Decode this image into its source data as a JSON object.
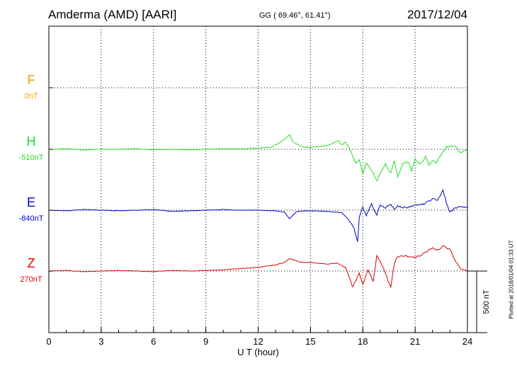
{
  "header": {
    "station": "Amderma (AMD)  [AARI]",
    "coords": "GG ( 69.46°,  61.41°)",
    "date": "2017/12/04"
  },
  "footer": {
    "plotted": "Plotted at 2018/01/04 01:33 UT"
  },
  "chart_data": {
    "type": "line",
    "xlabel": "U T (hour)",
    "xlim": [
      0,
      24
    ],
    "xticks": [
      "0",
      "3",
      "6",
      "9",
      "12",
      "15",
      "18",
      "21",
      "24"
    ],
    "scale_bar_label": "500 nT",
    "grid": true,
    "series": [
      {
        "name": "F",
        "baseline": "0nT",
        "color": "#f5a000",
        "values": []
      },
      {
        "name": "H",
        "baseline": "-510nT",
        "color": "#22dd22",
        "x": [
          0,
          1,
          2,
          3,
          4,
          5,
          6,
          7,
          8,
          9,
          10,
          11,
          12,
          12.8,
          13.3,
          13.6,
          13.8,
          14.0,
          14.5,
          15.0,
          15.5,
          16.0,
          16.3,
          16.6,
          16.8,
          17.0,
          17.2,
          17.4,
          17.6,
          17.8,
          18.0,
          18.2,
          18.5,
          18.8,
          19.0,
          19.3,
          19.6,
          19.8,
          20.0,
          20.3,
          20.6,
          20.8,
          21.0,
          21.3,
          21.6,
          21.8,
          22.0,
          22.2,
          22.5,
          22.8,
          23.0,
          23.3,
          23.6,
          24
        ],
        "values": [
          0,
          5,
          -5,
          0,
          0,
          5,
          -5,
          0,
          -5,
          0,
          5,
          5,
          10,
          20,
          60,
          90,
          120,
          60,
          20,
          15,
          25,
          30,
          50,
          70,
          35,
          60,
          20,
          -50,
          -120,
          -80,
          -200,
          -110,
          -170,
          -260,
          -200,
          -120,
          -190,
          -90,
          -230,
          -110,
          -100,
          -170,
          -80,
          -120,
          -60,
          -130,
          -90,
          -110,
          -40,
          20,
          20,
          30,
          -30,
          0
        ]
      },
      {
        "name": "E",
        "baseline": "-840nT",
        "color": "#0000cc",
        "x": [
          0,
          1,
          2,
          3,
          4,
          5,
          6,
          7,
          8,
          9,
          10,
          11,
          12,
          13.0,
          13.5,
          13.8,
          14.2,
          15.0,
          16.0,
          16.8,
          17.2,
          17.5,
          17.7,
          17.8,
          18.0,
          18.2,
          18.5,
          18.8,
          19.0,
          19.3,
          19.6,
          19.8,
          20.0,
          20.5,
          21.0,
          21.5,
          22.0,
          22.3,
          22.6,
          22.8,
          23.0,
          23.3,
          23.6,
          24
        ],
        "values": [
          0,
          -5,
          5,
          0,
          -5,
          0,
          5,
          -10,
          -5,
          0,
          5,
          0,
          0,
          -5,
          -15,
          -70,
          -10,
          -5,
          -10,
          -20,
          -80,
          -150,
          -260,
          -50,
          20,
          -40,
          50,
          -40,
          40,
          20,
          50,
          10,
          30,
          20,
          40,
          50,
          90,
          80,
          160,
          60,
          -20,
          20,
          30,
          20
        ]
      },
      {
        "name": "Z",
        "baseline": "270nT",
        "color": "#dd0000",
        "x": [
          0,
          1,
          2,
          3,
          4,
          5,
          6,
          7,
          8,
          9,
          10,
          11,
          12,
          13.0,
          13.5,
          13.8,
          14.5,
          15.0,
          16.0,
          16.5,
          17.0,
          17.2,
          17.4,
          17.6,
          17.8,
          18.0,
          18.3,
          18.6,
          18.8,
          19.0,
          19.3,
          19.6,
          19.8,
          20.0,
          20.5,
          21.0,
          21.5,
          22.0,
          22.3,
          22.6,
          23.0,
          23.3,
          23.6,
          24
        ],
        "values": [
          0,
          5,
          -5,
          0,
          5,
          0,
          -5,
          5,
          0,
          5,
          10,
          20,
          30,
          50,
          70,
          100,
          70,
          70,
          55,
          65,
          30,
          -40,
          -130,
          -80,
          -20,
          -110,
          10,
          -80,
          120,
          80,
          -20,
          -130,
          60,
          120,
          120,
          110,
          140,
          190,
          170,
          200,
          180,
          80,
          20,
          0
        ]
      }
    ]
  }
}
